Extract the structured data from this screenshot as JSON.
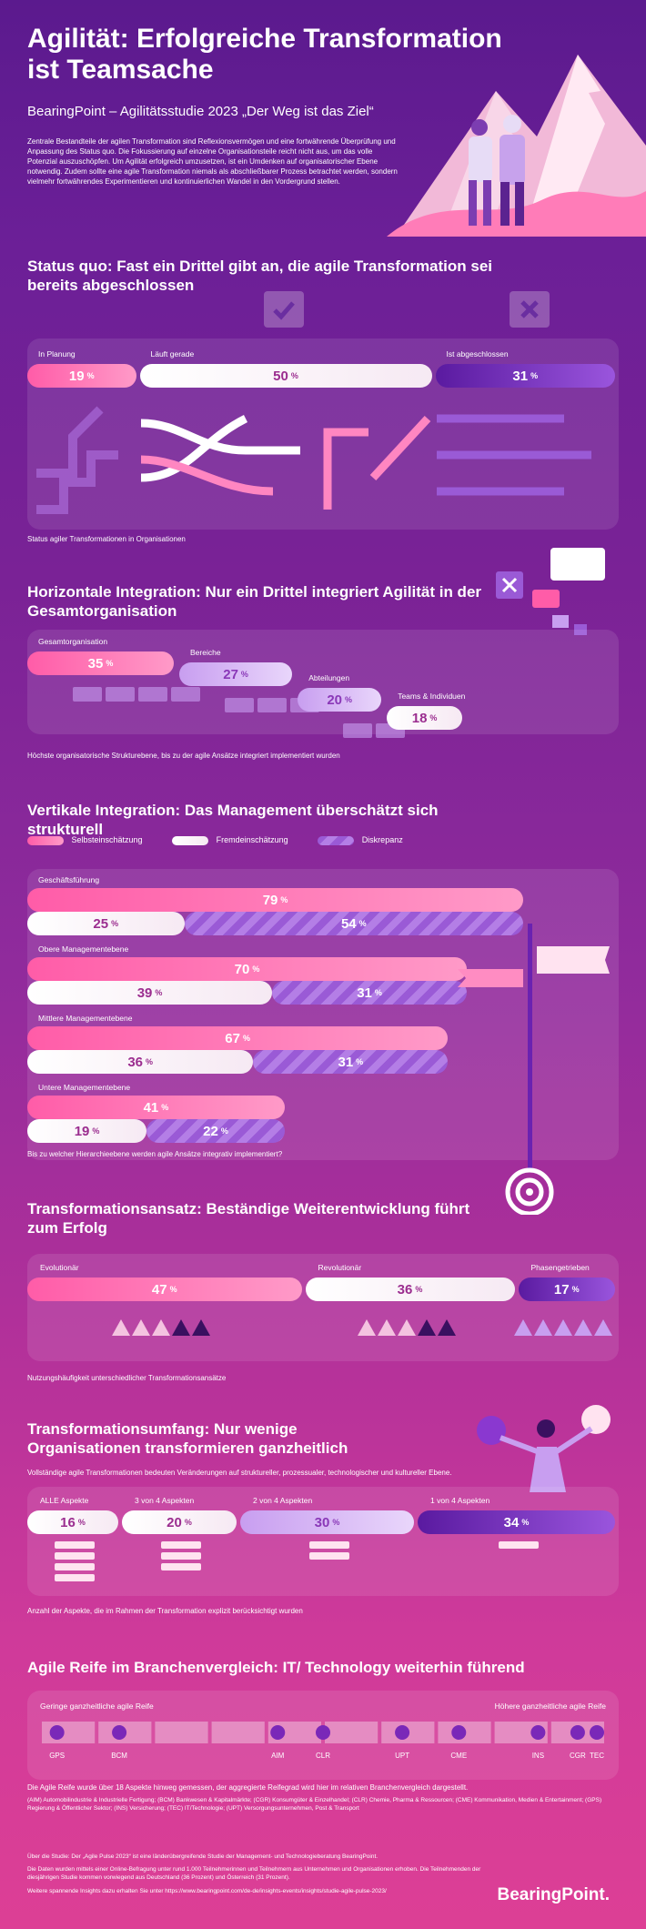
{
  "header": {
    "title": "Agilität: Erfolgreiche Transformation ist Teamsache",
    "subtitle": "BearingPoint – Agilitätsstudie 2023 „Der Weg ist das Ziel“",
    "intro": "Zentrale Bestandteile der agilen Transformation sind Reflexionsvermögen und eine fortwährende Überprüfung und Anpassung des Status quo. Die Fokussierung auf einzelne Organisationsteile reicht nicht aus, um das volle Potenzial auszuschöpfen. Um Agilität erfolgreich umzusetzen, ist ein Umdenken auf organisatorischer Ebene notwendig. Zudem sollte eine agile Transformation niemals als abschließbarer Prozess betrachtet werden, sondern vielmehr fortwährendes Experimentieren und kontinuierlichen Wandel in den Vordergrund stellen."
  },
  "status": {
    "title": "Status quo: Fast ein Drittel gibt an, die agile Transformation sei bereits abgeschlossen",
    "caption": "Status agiler Transformationen in Organisationen"
  },
  "horizontal": {
    "title": "Horizontale Integration: Nur ein Drittel integriert Agilität in der Gesamtorganisation",
    "caption": "Höchste organisatorische Strukturebene, bis zu der agile Ansätze integriert implementiert wurden"
  },
  "vertical": {
    "title": "Vertikale Integration: Das Management überschätzt sich strukturell",
    "caption": "Bis zu welcher Hierarchieebene werden agile Ansätze integrativ implementiert?"
  },
  "approach": {
    "title": "Transformationsansatz: Beständige Weiterentwicklung führt zum Erfolg",
    "caption": "Nutzungshäufigkeit unterschiedlicher Transformationsansätze"
  },
  "scope": {
    "title": "Transformationsumfang: Nur wenige Organisationen transformieren ganzheitlich",
    "subtitle": "Vollständige agile Transformationen bedeuten Veränderungen auf struktureller, prozessualer, technologischer und kultureller Ebene.",
    "caption": "Anzahl der Aspekte, die im Rahmen der Transformation explizit berücksichtigt wurden"
  },
  "maturity": {
    "title": "Agile Reife im Branchenvergleich: IT/ Technology weiterhin führend",
    "caption": "Die Agile Reife wurde über 18 Aspekte hinweg gemessen, der aggregierte Reifegrad wird hier im relativen Branchenvergleich dargestellt.",
    "legend": "(AIM) Automobilindustrie & Industrielle Fertigung; (BCM) Bankwesen & Kapitalmärkte; (CGR) Konsumgüter & Einzelhandel; (CLR) Chemie, Pharma & Ressourcen; (CME) Kommunikation, Medien & Entertainment; (GPS) Regierung & Öffentlicher Sektor; (INS) Versicherung; (TEC) IT/Technologie; (UPT) Versorgungsunternehmen, Post & Transport"
  },
  "footer": {
    "p1": "Über die Studie: Der „Agile Pulse 2023“ ist eine länderübergreifende Studie der Management- und Technologieberatung BearingPoint.",
    "p2": "Die Daten wurden mittels einer Online-Befragung unter rund 1.000 Teilnehmerinnen und Teilnehmern aus Unternehmen und Organisationen erhoben. Die Teilnehmenden der diesjährigen Studie kommen vorwiegend aus Deutschland (36 Prozent) und Österreich (31 Prozent).",
    "p3": "Weitere spannende Insights dazu erhalten Sie unter https://www.bearingpoint.com/de-de/insights-events/insights/studie-agile-pulse-2023/",
    "logo": "BearingPoint."
  },
  "colors": {
    "pink": "#ff5ca8",
    "white": "#ffffff",
    "lilac": "#c89ef0",
    "violet": "#6a22b0"
  },
  "chart_data": [
    {
      "type": "bar",
      "title": "Status quo: Fast ein Drittel gibt an, die agile Transformation sei bereits abgeschlossen",
      "categories": [
        "In Planung",
        "Läuft gerade",
        "Ist abgeschlossen"
      ],
      "values": [
        19,
        50,
        31
      ],
      "unit": "%",
      "icons": [
        "",
        "check-icon",
        "x-icon"
      ]
    },
    {
      "type": "bar",
      "title": "Horizontale Integration: Nur ein Drittel integriert Agilität in der Gesamtorganisation",
      "categories": [
        "Gesamtorganisation",
        "Bereiche",
        "Abteilungen",
        "Teams & Individuen"
      ],
      "values": [
        35,
        27,
        20,
        18
      ],
      "unit": "%"
    },
    {
      "type": "bar",
      "title": "Vertikale Integration: Das Management überschätzt sich strukturell",
      "categories": [
        "Geschäftsführung",
        "Obere Managementebene",
        "Mittlere Managementebene",
        "Untere Managementebene"
      ],
      "series": [
        {
          "name": "Selbsteinschätzung",
          "values": [
            79,
            70,
            67,
            41
          ]
        },
        {
          "name": "Fremdeinschätzung",
          "values": [
            25,
            39,
            36,
            19
          ]
        },
        {
          "name": "Diskrepanz",
          "values": [
            54,
            31,
            31,
            22
          ]
        }
      ],
      "unit": "%"
    },
    {
      "type": "bar",
      "title": "Transformationsansatz: Beständige Weiterentwicklung führt zum Erfolg",
      "categories": [
        "Evolutionär",
        "Revolutionär",
        "Phasengetrieben"
      ],
      "values": [
        47,
        36,
        17
      ],
      "unit": "%"
    },
    {
      "type": "bar",
      "title": "Transformationsumfang: Nur wenige Organisationen transformieren ganzheitlich",
      "categories": [
        "ALLE Aspekte",
        "3 von 4 Aspekten",
        "2 von 4 Aspekten",
        "1 von 4 Aspekten"
      ],
      "values": [
        16,
        20,
        30,
        34
      ],
      "unit": "%"
    },
    {
      "type": "scatter",
      "title": "Agile Reife im Branchenvergleich: IT/ Technology weiterhin führend",
      "axis_labels": [
        "Geringe ganzheitliche agile Reife",
        "Höhere ganzheitliche agile Reife"
      ],
      "categories": [
        "GPS",
        "BCM",
        "AIM",
        "CLR",
        "UPT",
        "CME",
        "INS",
        "CGR",
        "TEC"
      ],
      "x": [
        0.03,
        0.14,
        0.42,
        0.5,
        0.64,
        0.74,
        0.88,
        0.95,
        0.99
      ]
    }
  ]
}
